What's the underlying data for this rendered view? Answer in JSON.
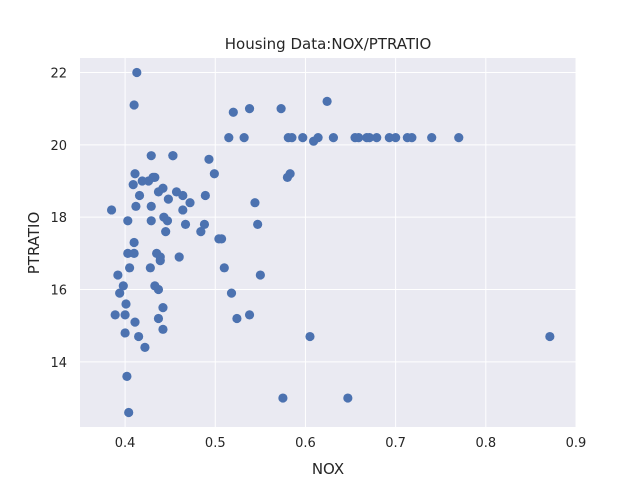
{
  "chart_data": {
    "type": "scatter",
    "title": "Housing Data:NOX/PTRATIO",
    "xlabel": "NOX",
    "ylabel": "PTRATIO",
    "xlim": [
      0.35,
      0.9
    ],
    "ylim": [
      12.2,
      22.4
    ],
    "xticks": [
      "0.4",
      "0.5",
      "0.6",
      "0.7",
      "0.8",
      "0.9"
    ],
    "yticks": [
      "14",
      "16",
      "18",
      "20",
      "22"
    ],
    "grid": true,
    "background_color": "#eaeaf2",
    "marker_color": "#4c72b0",
    "points": [
      [
        0.385,
        18.2
      ],
      [
        0.389,
        15.3
      ],
      [
        0.392,
        16.4
      ],
      [
        0.394,
        15.9
      ],
      [
        0.398,
        16.1
      ],
      [
        0.4,
        15.3
      ],
      [
        0.4,
        14.8
      ],
      [
        0.401,
        15.6
      ],
      [
        0.402,
        13.6
      ],
      [
        0.403,
        17.0
      ],
      [
        0.403,
        17.9
      ],
      [
        0.404,
        12.6
      ],
      [
        0.405,
        16.6
      ],
      [
        0.409,
        18.9
      ],
      [
        0.41,
        17.3
      ],
      [
        0.41,
        17.0
      ],
      [
        0.41,
        21.1
      ],
      [
        0.411,
        19.2
      ],
      [
        0.411,
        15.1
      ],
      [
        0.412,
        18.3
      ],
      [
        0.413,
        22.0
      ],
      [
        0.415,
        14.7
      ],
      [
        0.416,
        18.6
      ],
      [
        0.419,
        19.0
      ],
      [
        0.422,
        14.4
      ],
      [
        0.426,
        19.0
      ],
      [
        0.428,
        16.6
      ],
      [
        0.429,
        18.3
      ],
      [
        0.429,
        17.9
      ],
      [
        0.429,
        19.7
      ],
      [
        0.431,
        19.1
      ],
      [
        0.433,
        16.1
      ],
      [
        0.433,
        19.1
      ],
      [
        0.435,
        17.0
      ],
      [
        0.437,
        16.0
      ],
      [
        0.437,
        15.2
      ],
      [
        0.437,
        18.7
      ],
      [
        0.439,
        16.8
      ],
      [
        0.439,
        16.9
      ],
      [
        0.442,
        18.8
      ],
      [
        0.442,
        14.9
      ],
      [
        0.442,
        15.5
      ],
      [
        0.443,
        18.0
      ],
      [
        0.445,
        17.6
      ],
      [
        0.447,
        17.9
      ],
      [
        0.448,
        18.5
      ],
      [
        0.453,
        19.7
      ],
      [
        0.453,
        19.7
      ],
      [
        0.457,
        18.7
      ],
      [
        0.46,
        16.9
      ],
      [
        0.464,
        18.2
      ],
      [
        0.464,
        18.6
      ],
      [
        0.467,
        17.8
      ],
      [
        0.472,
        18.4
      ],
      [
        0.484,
        17.6
      ],
      [
        0.488,
        17.8
      ],
      [
        0.489,
        18.6
      ],
      [
        0.493,
        19.6
      ],
      [
        0.499,
        19.2
      ],
      [
        0.504,
        17.4
      ],
      [
        0.507,
        17.4
      ],
      [
        0.51,
        16.6
      ],
      [
        0.515,
        20.2
      ],
      [
        0.518,
        15.9
      ],
      [
        0.52,
        20.9
      ],
      [
        0.524,
        15.2
      ],
      [
        0.532,
        20.2
      ],
      [
        0.538,
        21.0
      ],
      [
        0.538,
        15.3
      ],
      [
        0.544,
        18.4
      ],
      [
        0.547,
        17.8
      ],
      [
        0.55,
        16.4
      ],
      [
        0.573,
        21.0
      ],
      [
        0.575,
        13.0
      ],
      [
        0.58,
        19.1
      ],
      [
        0.581,
        20.2
      ],
      [
        0.583,
        19.2
      ],
      [
        0.585,
        20.2
      ],
      [
        0.597,
        20.2
      ],
      [
        0.605,
        14.7
      ],
      [
        0.609,
        20.1
      ],
      [
        0.614,
        20.2
      ],
      [
        0.624,
        21.2
      ],
      [
        0.631,
        20.2
      ],
      [
        0.647,
        13.0
      ],
      [
        0.655,
        20.2
      ],
      [
        0.659,
        20.2
      ],
      [
        0.668,
        20.2
      ],
      [
        0.671,
        20.2
      ],
      [
        0.679,
        20.2
      ],
      [
        0.693,
        20.2
      ],
      [
        0.7,
        20.2
      ],
      [
        0.713,
        20.2
      ],
      [
        0.718,
        20.2
      ],
      [
        0.74,
        20.2
      ],
      [
        0.77,
        20.2
      ],
      [
        0.871,
        14.7
      ]
    ]
  }
}
